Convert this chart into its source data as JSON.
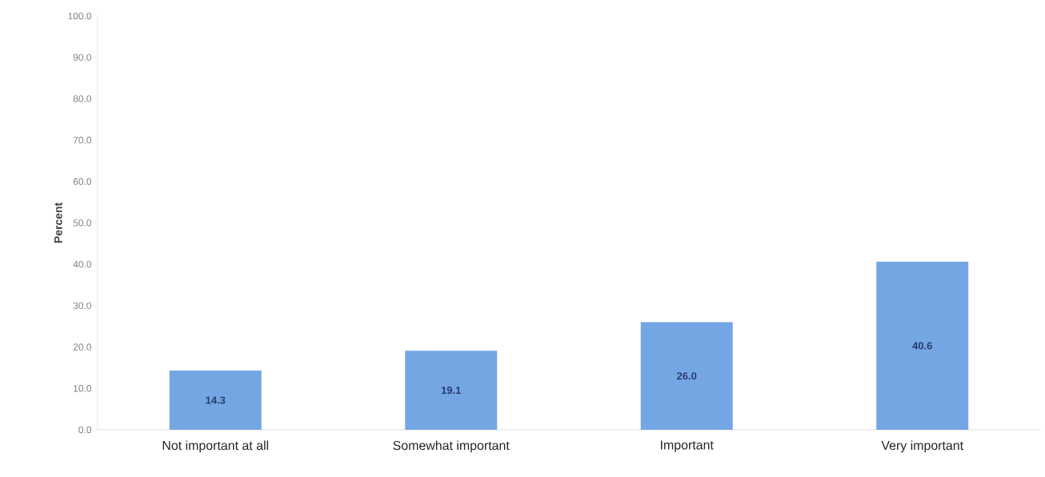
{
  "chart_data": {
    "type": "bar",
    "ylabel": "Percent",
    "categories": [
      "Not important at all",
      "Somewhat important",
      "Important",
      "Very important"
    ],
    "values": [
      14.3,
      19.1,
      26.0,
      40.6
    ],
    "value_labels": [
      "14.3",
      "19.1",
      "26.0",
      "40.6"
    ],
    "color": "#74a6e4",
    "ylim": [
      0,
      100
    ],
    "yticks": [
      {
        "value": 0,
        "label": "0.0"
      },
      {
        "value": 10,
        "label": "10.0"
      },
      {
        "value": 20,
        "label": "20.0"
      },
      {
        "value": 30,
        "label": "30.0"
      },
      {
        "value": 40,
        "label": "40.0"
      },
      {
        "value": 50,
        "label": "50.0"
      },
      {
        "value": 60,
        "label": "60.0"
      },
      {
        "value": 70,
        "label": "70.0"
      },
      {
        "value": 80,
        "label": "80.0"
      },
      {
        "value": 90,
        "label": "90.0"
      },
      {
        "value": 100,
        "label": "100.0"
      }
    ],
    "grid": false
  }
}
